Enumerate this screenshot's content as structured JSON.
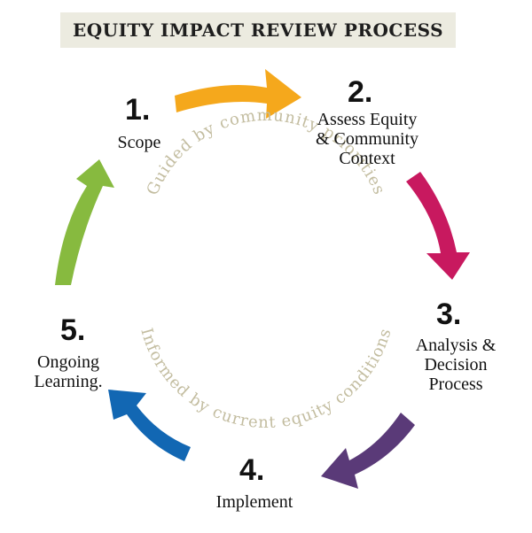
{
  "title": "EQUITY IMPACT REVIEW PROCESS",
  "steps": [
    {
      "number": "1.",
      "label": "Scope"
    },
    {
      "number": "2.",
      "label": "Assess Equity\n& Community\nContext"
    },
    {
      "number": "3.",
      "label": "Analysis &\nDecision\nProcess"
    },
    {
      "number": "4.",
      "label": "Implement"
    },
    {
      "number": "5.",
      "label": "Ongoing\nLearning."
    }
  ],
  "ring_text_top": "Guided by community priorities",
  "ring_text_bottom": "Informed by current equity conditions",
  "colors": {
    "arrow_1_to_2": "#f5a81c",
    "arrow_2_to_3": "#c8195f",
    "arrow_3_to_4": "#5a3a78",
    "arrow_4_to_5": "#1267b3",
    "arrow_5_to_1": "#87ba3f",
    "ring_text": "#c3bda0",
    "title_bg": "#ecebe0"
  }
}
